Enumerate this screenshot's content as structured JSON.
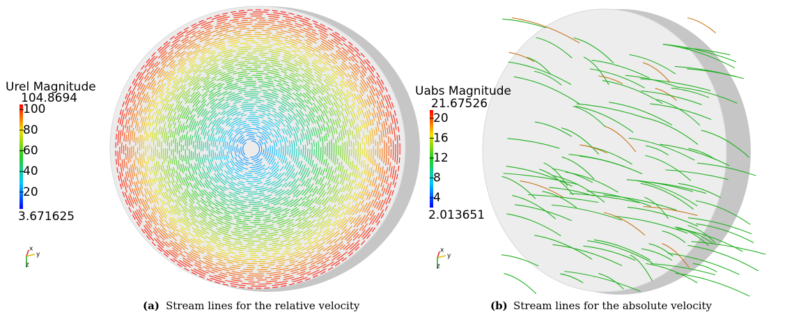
{
  "panels": [
    {
      "label": "(a)",
      "caption": "Stream lines for the relative velocity",
      "colorbar": {
        "title": "Urel Magnitude",
        "max": 104.8694,
        "min": 3.671625,
        "ticks": [
          20,
          40,
          60,
          80,
          100
        ]
      },
      "axes": {
        "x": "x",
        "y": "y",
        "z": "z"
      }
    },
    {
      "label": "(b)",
      "caption": "Stream lines for the absolute velocity",
      "colorbar": {
        "title": "Uabs Magnitude",
        "max": 21.67526,
        "min": 2.013651,
        "ticks": [
          4,
          8,
          12,
          16,
          20
        ]
      },
      "axes": {
        "x": "x",
        "y": "y",
        "z": "z"
      }
    }
  ]
}
